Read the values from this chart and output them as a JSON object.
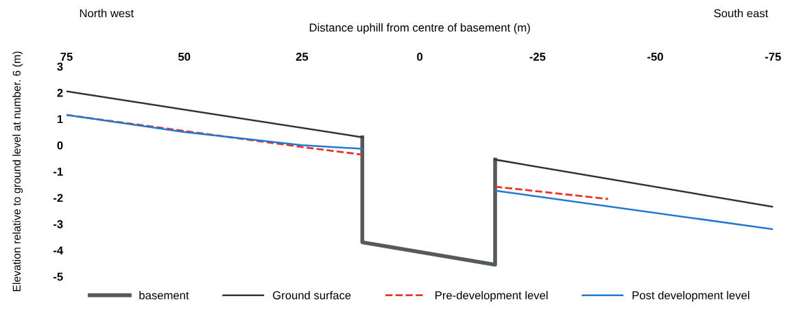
{
  "chart_data": {
    "type": "line",
    "xlabel": "Distance uphill from centre of basement (m)",
    "ylabel": "Elevation relative to ground level at number. 6 (m)",
    "xlim": [
      75,
      -75
    ],
    "xticks": [
      75,
      50,
      25,
      0,
      -25,
      -50,
      -75
    ],
    "ylim": [
      -5,
      3
    ],
    "yticks": [
      3,
      2,
      1,
      0,
      -1,
      -2,
      -3,
      -4,
      -5
    ],
    "grid": false,
    "legend": "bottom",
    "marker": "none",
    "annotations": [
      "North west",
      "South east"
    ],
    "series": [
      {
        "name": "basement",
        "color": "#555a5a",
        "x": [
          12.2,
          12.2,
          -16,
          -16
        ],
        "values": [
          0.3,
          -3.7,
          -4.55,
          -0.55
        ]
      },
      {
        "name": "Ground surface",
        "color": "#333333",
        "x": [
          75,
          12.2,
          null,
          -16,
          -75
        ],
        "values": [
          2.05,
          0.3,
          null,
          -0.55,
          -2.35
        ]
      },
      {
        "name": "Pre-development level",
        "color": "#e8322a",
        "line_style": "dashed",
        "x": [
          75,
          25,
          12.2,
          null,
          -16,
          -40
        ],
        "values": [
          1.15,
          -0.07,
          -0.36,
          null,
          -1.58,
          -2.05
        ]
      },
      {
        "name": "Post development level",
        "color": "#1f78d1",
        "x": [
          75,
          50,
          25,
          12.2,
          null,
          -16,
          -75
        ],
        "values": [
          1.15,
          0.5,
          0.0,
          -0.14,
          null,
          -1.73,
          -3.2
        ]
      }
    ]
  }
}
